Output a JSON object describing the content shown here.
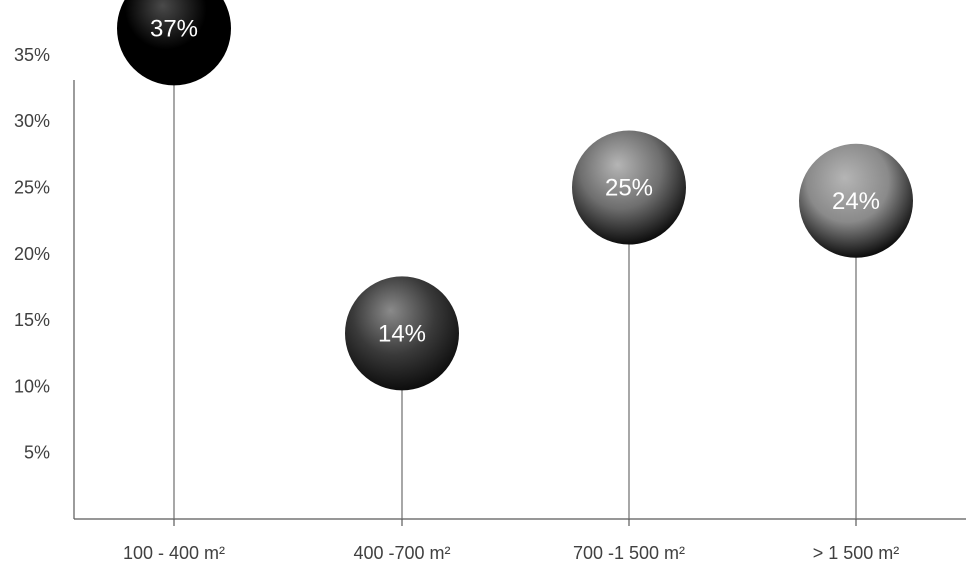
{
  "chart_data": {
    "type": "scatter",
    "title": "",
    "xlabel": "",
    "ylabel": "",
    "categories": [
      "100 - 400 m²",
      "400 -700 m²",
      "700 -1 500 m²",
      "> 1 500 m²"
    ],
    "series": [
      {
        "values": [
          37,
          14,
          25,
          24
        ],
        "labels": [
          "37%",
          "14%",
          "25%",
          "24%"
        ]
      }
    ],
    "y_ticks": [
      5,
      10,
      15,
      20,
      25,
      30,
      35
    ],
    "y_tick_labels": [
      "5%",
      "10%",
      "15%",
      "20%",
      "25%",
      "30%",
      "35%"
    ],
    "ylim": [
      0,
      35
    ],
    "grid": false,
    "legend": "none",
    "bubble_colors": [
      "#000000",
      "#3a3a3a",
      "#6e6e6e",
      "#8a8a8a"
    ]
  }
}
